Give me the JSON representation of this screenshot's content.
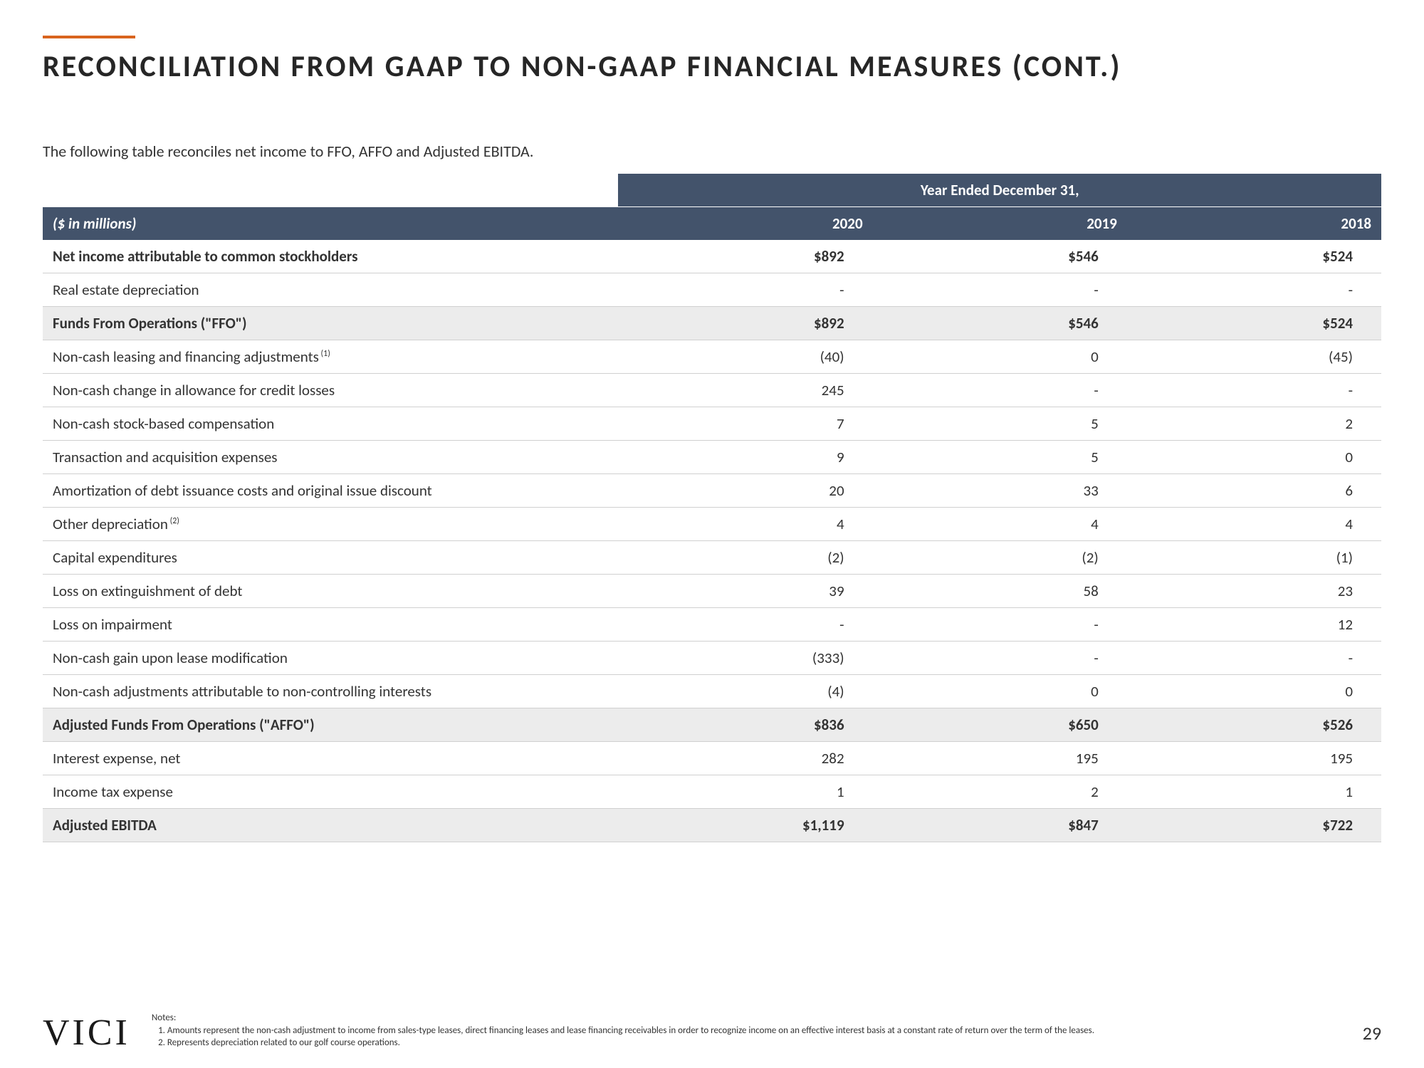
{
  "title": "RECONCILIATION FROM GAAP TO NON-GAAP FINANCIAL MEASURES (CONT.)",
  "intro": "The following table reconciles net income to FFO, AFFO and Adjusted EBITDA.",
  "table": {
    "group_header": "Year Ended December 31,",
    "unit_label": "($ in millions)",
    "columns": [
      "2020",
      "2019",
      "2018"
    ],
    "rows": [
      {
        "label": "Net income attributable to common stockholders",
        "vals": [
          "$892",
          "$546",
          "$524"
        ],
        "bold": true
      },
      {
        "label": "Real estate depreciation",
        "vals": [
          "-",
          "-",
          "-"
        ]
      },
      {
        "label": "Funds From Operations (\"FFO\")",
        "vals": [
          "$892",
          "$546",
          "$524"
        ],
        "bold": true,
        "shade": true
      },
      {
        "label": "Non-cash leasing and financing adjustments",
        "sup": "(1)",
        "vals": [
          "(40)",
          "0",
          "(45)"
        ]
      },
      {
        "label": "Non-cash change in allowance for credit losses",
        "vals": [
          "245",
          "-",
          "-"
        ]
      },
      {
        "label": "Non-cash stock-based compensation",
        "vals": [
          "7",
          "5",
          "2"
        ]
      },
      {
        "label": "Transaction and acquisition expenses",
        "vals": [
          "9",
          "5",
          "0"
        ]
      },
      {
        "label": "Amortization of debt issuance costs and original issue discount",
        "vals": [
          "20",
          "33",
          "6"
        ]
      },
      {
        "label": "Other depreciation",
        "sup": "(2)",
        "vals": [
          "4",
          "4",
          "4"
        ]
      },
      {
        "label": "Capital expenditures",
        "vals": [
          "(2)",
          "(2)",
          "(1)"
        ]
      },
      {
        "label": "Loss on extinguishment of debt",
        "vals": [
          "39",
          "58",
          "23"
        ]
      },
      {
        "label": "Loss on impairment",
        "vals": [
          "-",
          "-",
          "12"
        ]
      },
      {
        "label": "Non-cash gain upon lease modification",
        "vals": [
          "(333)",
          "-",
          "-"
        ]
      },
      {
        "label": "Non-cash adjustments attributable to non-controlling interests",
        "vals": [
          "(4)",
          "0",
          "0"
        ]
      },
      {
        "label": "Adjusted Funds From Operations (\"AFFO\")",
        "vals": [
          "$836",
          "$650",
          "$526"
        ],
        "bold": true,
        "shade": true
      },
      {
        "label": "Interest expense, net",
        "vals": [
          "282",
          "195",
          "195"
        ]
      },
      {
        "label": "Income tax expense",
        "vals": [
          "1",
          "2",
          "1"
        ]
      },
      {
        "label": "Adjusted EBITDA",
        "vals": [
          "$1,119",
          "$847",
          "$722"
        ],
        "bold": true,
        "shade": true
      }
    ]
  },
  "logo": "VICI",
  "notes": {
    "heading": "Notes:",
    "items": [
      "Amounts represent the non-cash adjustment to income from sales-type leases, direct financing leases and lease financing receivables in order to recognize income on an effective interest basis at a constant rate of return over the term of the leases.",
      "Represents depreciation related to our golf course operations."
    ]
  },
  "page_number": "29"
}
